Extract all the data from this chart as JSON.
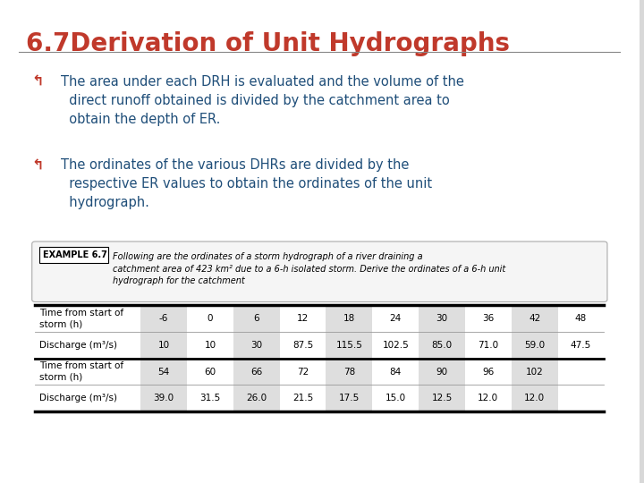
{
  "title": "6.7Derivation of Unit Hydrographs",
  "title_color": "#C0392B",
  "title_fontsize": 20,
  "background_color": "#FFFFFF",
  "slide_bg": "#F0F0F0",
  "bullet_color": "#1F4E79",
  "bullet1_line1": "The area under each DRH is evaluated and the volume of the",
  "bullet1_line2": "direct runoff obtained is divided by the catchment area to",
  "bullet1_line3": "obtain the depth of ER.",
  "bullet2_line1": "The ordinates of the various DHRs are divided by the",
  "bullet2_line2": "respective ER values to obtain the ordinates of the unit",
  "bullet2_line3": "hydrograph.",
  "example_label": "EXAMPLE 6.7",
  "example_text": "Following are the ordinates of a storm hydrograph of a river draining a catchment area of 423 km² due to a 6-h isolated storm. Derive the ordinates of a 6-h unit hydrograph for the catchment",
  "table": {
    "row1_header": "Time from start of\nstorm (h)",
    "row2_header": "Discharge (m³/s)",
    "row3_header": "Time from start of\nstorm (h)",
    "row4_header": "Discharge (m³/s)",
    "time1": [
      "-6",
      "0",
      "6",
      "12",
      "18",
      "24",
      "30",
      "36",
      "42",
      "48"
    ],
    "discharge1": [
      "10",
      "10",
      "30",
      "87.5",
      "115.5",
      "102.5",
      "85.0",
      "71.0",
      "59.0",
      "47.5"
    ],
    "time2": [
      "54",
      "60",
      "66",
      "72",
      "78",
      "84",
      "90",
      "96",
      "102"
    ],
    "discharge2": [
      "39.0",
      "31.5",
      "26.0",
      "21.5",
      "17.5",
      "15.0",
      "12.5",
      "12.0",
      "12.0"
    ]
  }
}
